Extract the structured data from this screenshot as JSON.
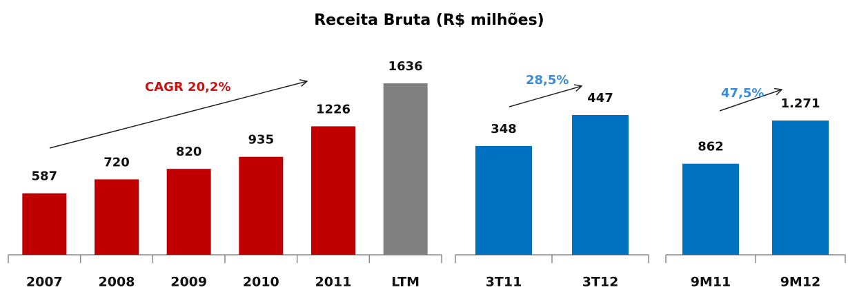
{
  "title": "Receita Bruta (R$ milhões)",
  "chart_data": [
    {
      "type": "bar",
      "categories": [
        "2007",
        "2008",
        "2009",
        "2010",
        "2011",
        "LTM"
      ],
      "values": [
        587,
        720,
        820,
        935,
        1226,
        1636
      ],
      "colors": [
        "#c00000",
        "#c00000",
        "#c00000",
        "#c00000",
        "#c00000",
        "#808080"
      ],
      "annotation": "CAGR 20,2%",
      "annotation_color": "#cc1111"
    },
    {
      "type": "bar",
      "categories": [
        "3T11",
        "3T12"
      ],
      "values": [
        348,
        447
      ],
      "color": "#0070c0",
      "annotation": "28,5%",
      "annotation_color": "#3a8ad6"
    },
    {
      "type": "bar",
      "categories": [
        "9M11",
        "9M12"
      ],
      "values": [
        862,
        1271
      ],
      "value_labels": [
        "862",
        "1.271"
      ],
      "color": "#0070c0",
      "annotation": "47,5%",
      "annotation_color": "#3a8ad6"
    }
  ]
}
